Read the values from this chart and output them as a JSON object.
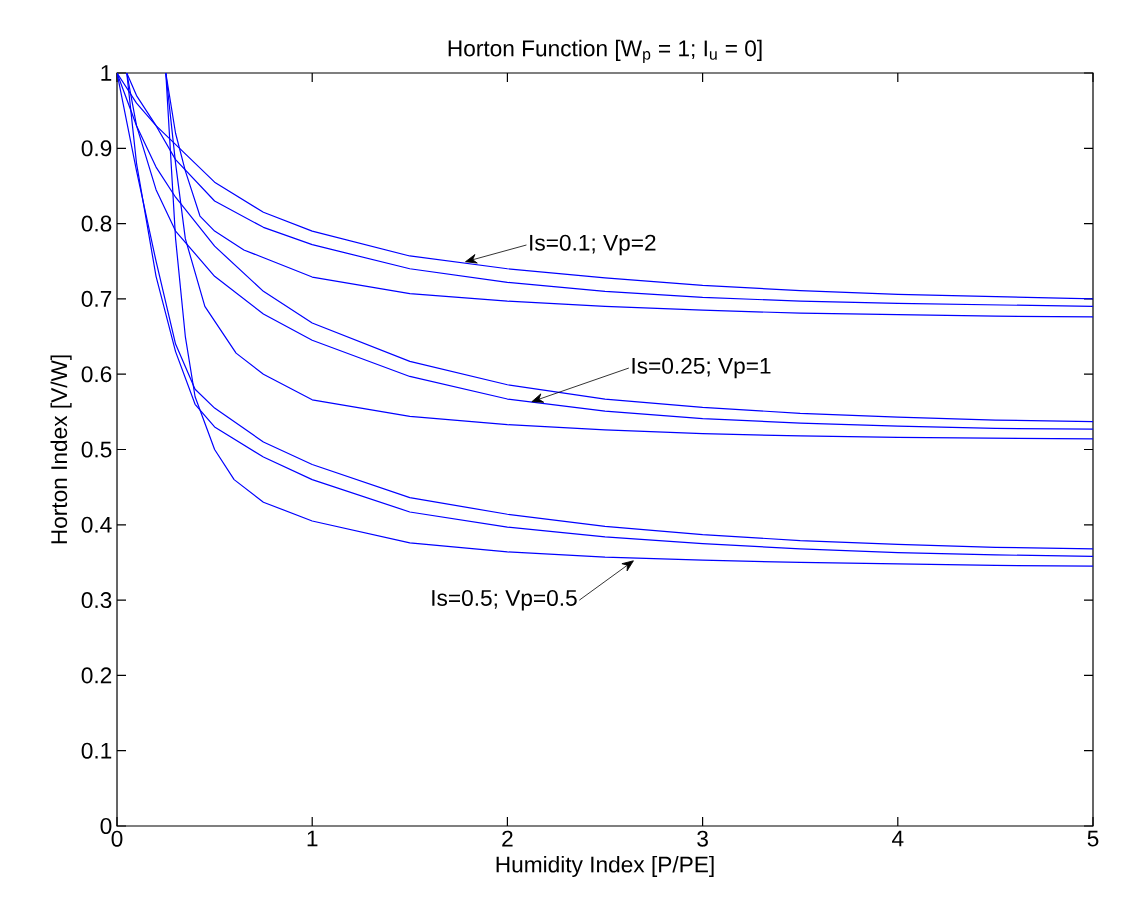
{
  "chart_data": {
    "type": "line",
    "title": "Horton Function [W$_{p}$ = 1; I$_{u}$ = 0]",
    "xlabel": "Humidity Index [P/PE]",
    "ylabel": "Horton Index [V/W]",
    "xlim": [
      0,
      5
    ],
    "ylim": [
      0,
      1
    ],
    "xticks": [
      0,
      1,
      2,
      3,
      4,
      5
    ],
    "yticks": [
      0,
      0.1,
      0.2,
      0.3,
      0.4,
      0.5,
      0.6,
      0.7,
      0.8,
      0.9,
      1
    ],
    "series": [
      {
        "color": "#0000ff",
        "x": [
          0,
          0.1,
          0.2,
          0.3,
          0.5,
          0.75,
          1,
          1.5,
          2,
          2.5,
          3,
          3.5,
          4,
          4.5,
          5
        ],
        "values": [
          1,
          0.96,
          0.93,
          0.905,
          0.855,
          0.815,
          0.79,
          0.757,
          0.74,
          0.728,
          0.718,
          0.711,
          0.706,
          0.703,
          0.7
        ]
      },
      {
        "color": "#0000ff",
        "x": [
          0.05,
          0.1,
          0.2,
          0.3,
          0.5,
          0.75,
          1,
          1.5,
          2,
          2.5,
          3,
          3.5,
          4,
          4.5,
          5
        ],
        "values": [
          1,
          0.97,
          0.93,
          0.885,
          0.83,
          0.795,
          0.772,
          0.74,
          0.722,
          0.71,
          0.702,
          0.697,
          0.694,
          0.692,
          0.69
        ]
      },
      {
        "color": "#0000ff",
        "x": [
          0.25,
          0.3,
          0.35,
          0.425,
          0.5,
          0.65,
          1,
          1.5,
          2,
          2.5,
          3,
          3.5,
          4,
          4.5,
          5
        ],
        "values": [
          1,
          0.92,
          0.87,
          0.81,
          0.79,
          0.765,
          0.729,
          0.707,
          0.697,
          0.69,
          0.685,
          0.681,
          0.679,
          0.677,
          0.676
        ]
      },
      {
        "color": "#0000ff",
        "x": [
          0,
          0.1,
          0.2,
          0.3,
          0.5,
          0.75,
          1,
          1.5,
          2,
          2.5,
          3,
          3.5,
          4,
          4.5,
          5
        ],
        "values": [
          1,
          0.93,
          0.875,
          0.835,
          0.77,
          0.71,
          0.668,
          0.617,
          0.586,
          0.567,
          0.556,
          0.548,
          0.543,
          0.539,
          0.537
        ]
      },
      {
        "color": "#0000ff",
        "x": [
          0.05,
          0.1,
          0.2,
          0.3,
          0.5,
          0.75,
          1,
          1.5,
          2,
          2.5,
          3,
          3.5,
          4,
          4.5,
          5
        ],
        "values": [
          1,
          0.93,
          0.845,
          0.79,
          0.73,
          0.68,
          0.645,
          0.597,
          0.567,
          0.551,
          0.541,
          0.535,
          0.531,
          0.528,
          0.527
        ]
      },
      {
        "color": "#0000ff",
        "x": [
          0.25,
          0.3,
          0.35,
          0.45,
          0.61,
          0.75,
          1,
          1.5,
          2,
          2.5,
          3,
          3.5,
          4,
          4.5,
          5
        ],
        "values": [
          1,
          0.88,
          0.78,
          0.69,
          0.628,
          0.6,
          0.566,
          0.544,
          0.533,
          0.526,
          0.521,
          0.518,
          0.516,
          0.515,
          0.514
        ]
      },
      {
        "color": "#0000ff",
        "x": [
          0,
          0.1,
          0.2,
          0.3,
          0.4,
          0.5,
          0.75,
          1,
          1.5,
          2,
          2.5,
          3,
          3.5,
          4,
          4.5,
          5
        ],
        "values": [
          1,
          0.87,
          0.75,
          0.64,
          0.58,
          0.555,
          0.51,
          0.48,
          0.436,
          0.414,
          0.398,
          0.387,
          0.379,
          0.374,
          0.37,
          0.368
        ]
      },
      {
        "color": "#0000ff",
        "x": [
          0.05,
          0.1,
          0.2,
          0.3,
          0.4,
          0.5,
          0.75,
          1,
          1.5,
          2,
          2.5,
          3,
          3.5,
          4,
          4.5,
          5
        ],
        "values": [
          1,
          0.88,
          0.73,
          0.63,
          0.56,
          0.53,
          0.49,
          0.46,
          0.417,
          0.397,
          0.384,
          0.375,
          0.368,
          0.363,
          0.36,
          0.358
        ]
      },
      {
        "color": "#0000ff",
        "x": [
          0.25,
          0.3,
          0.35,
          0.4,
          0.5,
          0.6,
          0.75,
          1,
          1.5,
          2,
          2.5,
          3,
          3.5,
          4,
          4.5,
          5
        ],
        "values": [
          1,
          0.78,
          0.65,
          0.57,
          0.5,
          0.46,
          0.43,
          0.405,
          0.376,
          0.364,
          0.357,
          0.353,
          0.35,
          0.348,
          0.346,
          0.345
        ]
      }
    ],
    "annotations": [
      {
        "text": "Is=0.1; Vp=2",
        "x": 1.78,
        "y": 0.749
      },
      {
        "text": "Is=0.25; Vp=1",
        "x": 2.12,
        "y": 0.563
      },
      {
        "text": "Is=0.5; Vp=0.5",
        "x": 2.65,
        "y": 0.353
      }
    ]
  }
}
